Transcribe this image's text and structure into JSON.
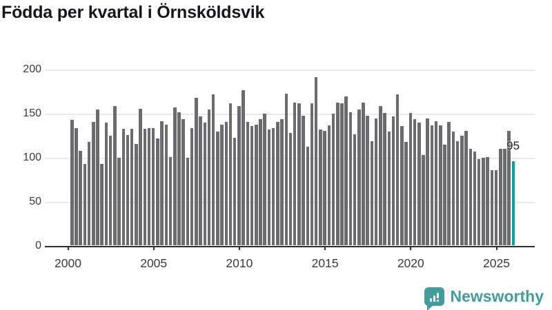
{
  "title": "Födda per kvartal i Örnsköldsvik",
  "chart_data": {
    "type": "bar",
    "title": "Födda per kvartal i Örnsköldsvik",
    "frequency": "quarterly",
    "start_period": "2000 Q1",
    "end_period": "2025 Q4",
    "values": [
      142,
      133,
      107,
      92,
      117,
      140,
      154,
      92,
      139,
      124,
      158,
      99,
      132,
      125,
      132,
      115,
      155,
      132,
      133,
      133,
      121,
      141,
      137,
      100,
      156,
      151,
      143,
      99,
      133,
      167,
      146,
      139,
      154,
      171,
      129,
      137,
      140,
      161,
      122,
      158,
      176,
      140,
      135,
      137,
      143,
      149,
      131,
      133,
      140,
      143,
      172,
      127,
      162,
      161,
      147,
      112,
      161,
      191,
      131,
      130,
      136,
      149,
      162,
      161,
      169,
      151,
      126,
      154,
      162,
      147,
      118,
      144,
      158,
      150,
      129,
      146,
      171,
      135,
      117,
      150,
      143,
      139,
      102,
      144,
      136,
      141,
      136,
      114,
      140,
      129,
      118,
      124,
      130,
      109,
      106,
      98,
      99,
      100,
      85,
      85,
      109,
      109,
      130,
      95
    ],
    "x_tick_labels": [
      "2000",
      "2005",
      "2010",
      "2015",
      "2020",
      "2025"
    ],
    "y_ticks": [
      0,
      50,
      100,
      150,
      200
    ],
    "ylim": [
      0,
      200
    ],
    "grid": true,
    "legend": "none",
    "bar_color": "#6b6a6f",
    "highlight_index": 103,
    "highlight_label": "95",
    "highlight_color": "#00a3a6"
  },
  "branding": {
    "name": "Newsworthy",
    "color": "#3f9d9b",
    "icon": "newsworthy-speech-bubble-bar-chart-icon"
  }
}
